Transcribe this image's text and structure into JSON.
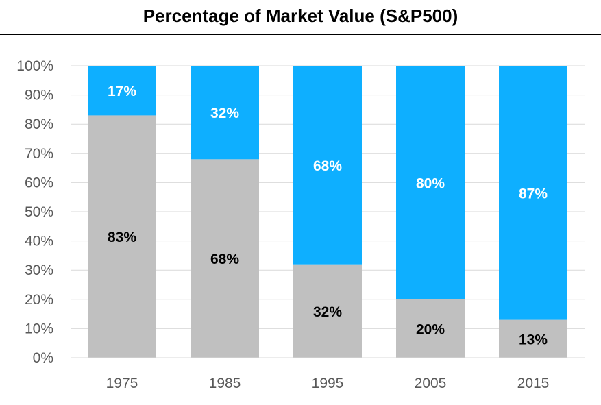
{
  "chart_data": {
    "type": "bar",
    "stacked": true,
    "title": "Percentage of Market Value (S&P500)",
    "xlabel": "",
    "ylabel": "",
    "categories": [
      "1975",
      "1985",
      "1995",
      "2005",
      "2015"
    ],
    "series": [
      {
        "values": [
          83,
          68,
          32,
          20,
          13
        ],
        "color": "#c0c0c0",
        "label_color": "#000000"
      },
      {
        "values": [
          17,
          32,
          68,
          80,
          87
        ],
        "color": "#0eafff",
        "label_color": "#ffffff"
      }
    ],
    "data_labels": [
      [
        "83%",
        "68%",
        "32%",
        "20%",
        "13%"
      ],
      [
        "17%",
        "32%",
        "68%",
        "80%",
        "87%"
      ]
    ],
    "ylim": [
      0,
      100
    ],
    "yticks": [
      0,
      10,
      20,
      30,
      40,
      50,
      60,
      70,
      80,
      90,
      100
    ],
    "ytick_labels": [
      "0%",
      "10%",
      "20%",
      "30%",
      "40%",
      "50%",
      "60%",
      "70%",
      "80%",
      "90%",
      "100%"
    ],
    "grid": true,
    "legend": "none"
  }
}
